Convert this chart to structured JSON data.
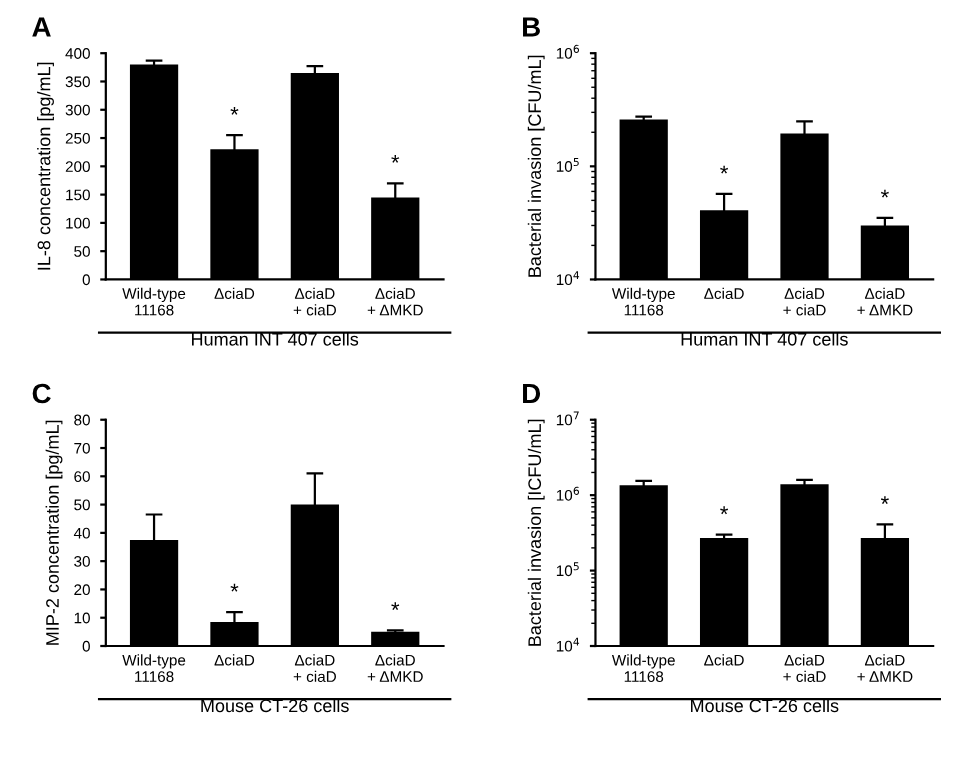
{
  "chart_data": [
    {
      "type": "bar",
      "title": "A",
      "xlabel": "Human INT 407 cells",
      "ylabel": "IL-8 concentration [pg/mL]",
      "categories": [
        "Wild-type\n11168",
        "ΔciaD",
        "ΔciaD\n+ ciaD",
        "ΔciaD\n+ ΔMKD"
      ],
      "values": [
        380,
        230,
        365,
        145
      ],
      "errors": [
        7,
        25,
        12,
        25
      ],
      "value_labels": [
        null,
        "*",
        null,
        "*"
      ],
      "color": "#000000",
      "ylim": [
        0,
        400
      ],
      "yticks": [
        0,
        50,
        100,
        150,
        200,
        250,
        300,
        350,
        400
      ]
    },
    {
      "type": "bar",
      "title": "B",
      "xlabel": "Human INT 407 cells",
      "ylabel": "Bacterial invasion [CFU/mL]",
      "categories": [
        "Wild-type\n11168",
        "ΔciaD",
        "ΔciaD\n+ ciaD",
        "ΔciaD\n+ ΔMKD"
      ],
      "values": [
        260000,
        41000,
        195000,
        30000
      ],
      "errors": [
        15000,
        16000,
        55000,
        5000
      ],
      "value_labels": [
        null,
        "*",
        null,
        "*"
      ],
      "color": "#000000",
      "log": "y",
      "ylim": [
        10000,
        1000000
      ],
      "yticks": [
        {
          "value": 10000,
          "label": "10$^{4}$"
        },
        {
          "value": 100000,
          "label": "10$^{5}$"
        },
        {
          "value": 1000000,
          "label": "10$^{6}$"
        }
      ]
    },
    {
      "type": "bar",
      "title": "C",
      "xlabel": "Mouse CT-26 cells",
      "ylabel": "MIP-2 concentration [pg/mL]",
      "categories": [
        "Wild-type\n11168",
        "ΔciaD",
        "ΔciaD\n+ ciaD",
        "ΔciaD\n+ ΔMKD"
      ],
      "values": [
        37.5,
        8.5,
        50,
        5
      ],
      "errors": [
        9,
        3.5,
        11,
        0.5
      ],
      "value_labels": [
        null,
        "*",
        null,
        "*"
      ],
      "color": "#000000",
      "ylim": [
        0,
        80
      ],
      "yticks": [
        0,
        10,
        20,
        30,
        40,
        50,
        60,
        70,
        80
      ]
    },
    {
      "type": "bar",
      "title": "D",
      "xlabel": "Mouse CT-26 cells",
      "ylabel": "Bacterial invasion [ICFU/mL]",
      "categories": [
        "Wild-type\n11168",
        "ΔciaD",
        "ΔciaD\n+ ciaD",
        "ΔciaD\n+ ΔMKD"
      ],
      "values": [
        1350000,
        270000,
        1400000,
        270000
      ],
      "errors": [
        200000,
        30000,
        200000,
        140000
      ],
      "value_labels": [
        null,
        "*",
        null,
        "*"
      ],
      "color": "#000000",
      "log": "y",
      "ylim": [
        10000,
        10000000
      ],
      "yticks": [
        {
          "value": 10000,
          "label": "10$^{4}$"
        },
        {
          "value": 100000,
          "label": "10$^{5}$"
        },
        {
          "value": 1000000,
          "label": "10$^{6}$"
        },
        {
          "value": 10000000,
          "label": "10$^{7}$"
        }
      ]
    }
  ]
}
